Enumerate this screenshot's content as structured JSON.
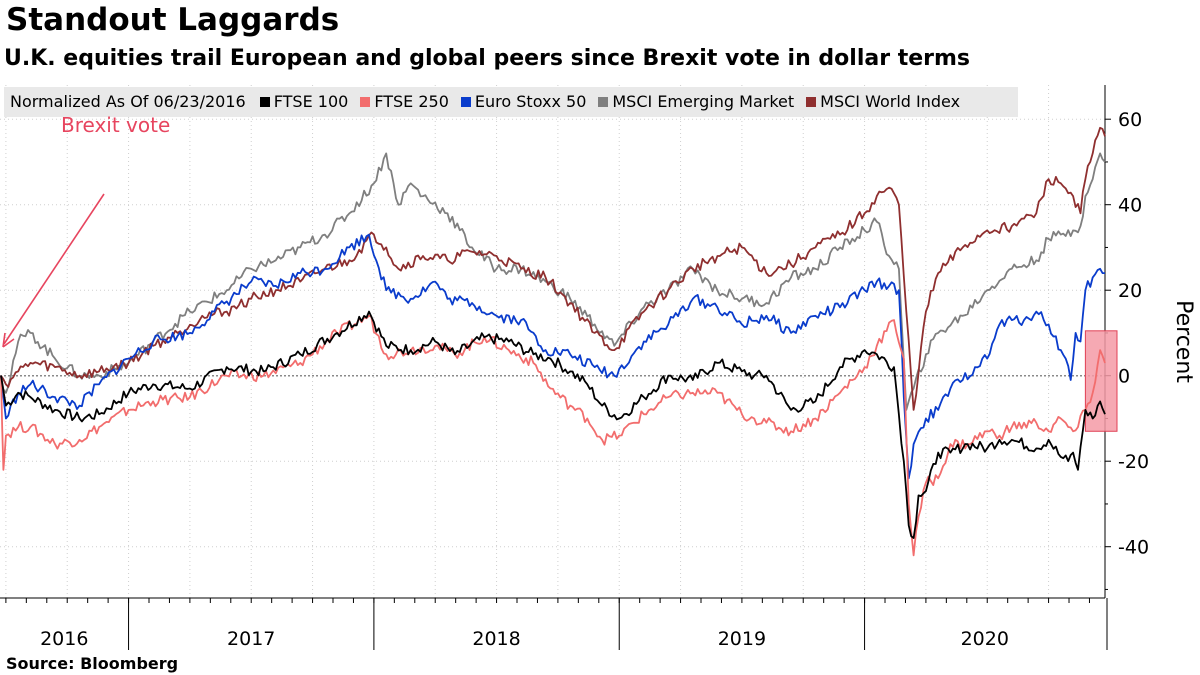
{
  "title": "Standout Laggards",
  "subtitle": "U.K. equities trail European and global peers since Brexit vote in dollar terms",
  "source": "Source: Bloomberg",
  "colors": {
    "ftse100": "#000000",
    "ftse250": "#f26d6d",
    "eurostoxx": "#0a3ccc",
    "msci_em": "#7f7f7f",
    "msci_world": "#8f2f2f",
    "annotation": "#e7455f",
    "highlight_fill": "#f59aa6",
    "highlight_stroke": "#e04055"
  },
  "chart_data": {
    "type": "line",
    "title": "Standout Laggards",
    "subtitle": "U.K. equities trail European and global peers since Brexit vote in dollar terms",
    "legend_header": "Normalized As Of 06/23/2016",
    "ylabel": "Percent",
    "ylim": [
      -52,
      68
    ],
    "yticks": [
      -40,
      -20,
      0,
      20,
      40,
      60
    ],
    "x_range": [
      2016.476,
      2020.98
    ],
    "x_tick_labels": [
      "2016",
      "2017",
      "2018",
      "2019",
      "2020"
    ],
    "x_year_boundaries": [
      2017,
      2018,
      2019,
      2020
    ],
    "reference_line": {
      "y": 0,
      "style": "dotted"
    },
    "annotation": {
      "text": "Brexit vote",
      "x": 2016.48,
      "y": 0
    },
    "highlight": {
      "x": [
        2020.9,
        2020.98
      ],
      "y": [
        -13,
        10.5
      ]
    },
    "series": [
      {
        "name": "FTSE 100",
        "color_key": "ftse100",
        "x": [
          2016.48,
          2016.5,
          2016.55,
          2016.6,
          2016.7,
          2016.8,
          2016.88,
          2017.0,
          2017.1,
          2017.25,
          2017.4,
          2017.55,
          2017.7,
          2017.85,
          2017.98,
          2018.05,
          2018.15,
          2018.25,
          2018.33,
          2018.45,
          2018.55,
          2018.65,
          2018.72,
          2018.8,
          2018.87,
          2018.93,
          2019.0,
          2019.1,
          2019.2,
          2019.3,
          2019.4,
          2019.5,
          2019.55,
          2019.6,
          2019.7,
          2019.8,
          2019.9,
          2020.0,
          2020.05,
          2020.12,
          2020.16,
          2020.18,
          2020.2,
          2020.22,
          2020.25,
          2020.3,
          2020.35,
          2020.42,
          2020.5,
          2020.55,
          2020.6,
          2020.7,
          2020.75,
          2020.8,
          2020.83,
          2020.85,
          2020.87,
          2020.9,
          2020.93,
          2020.96,
          2020.98
        ],
        "values": [
          0,
          -7,
          -4,
          -5,
          -8,
          -10,
          -9,
          -4,
          -2,
          -3,
          2,
          1,
          5,
          10,
          15,
          7,
          6,
          8,
          5,
          9,
          8,
          5,
          4,
          1,
          -2,
          -7,
          -10,
          -5,
          0,
          -1,
          3,
          1,
          0,
          0,
          -8,
          -6,
          2,
          6,
          5,
          2,
          -20,
          -35,
          -38,
          -28,
          -27,
          -18,
          -18,
          -16,
          -17,
          -15,
          -15,
          -17,
          -15,
          -19,
          -20,
          -18,
          -22,
          -8,
          -10,
          -6,
          -9
        ]
      },
      {
        "name": "FTSE 250",
        "color_key": "ftse250",
        "x": [
          2016.48,
          2016.49,
          2016.5,
          2016.55,
          2016.6,
          2016.7,
          2016.8,
          2016.88,
          2017.0,
          2017.1,
          2017.25,
          2017.4,
          2017.55,
          2017.7,
          2017.85,
          2017.98,
          2018.05,
          2018.15,
          2018.25,
          2018.33,
          2018.45,
          2018.55,
          2018.65,
          2018.72,
          2018.8,
          2018.87,
          2018.93,
          2019.0,
          2019.1,
          2019.2,
          2019.3,
          2019.4,
          2019.5,
          2019.55,
          2019.6,
          2019.7,
          2019.8,
          2019.9,
          2020.0,
          2020.05,
          2020.12,
          2020.16,
          2020.18,
          2020.2,
          2020.22,
          2020.25,
          2020.3,
          2020.35,
          2020.42,
          2020.5,
          2020.55,
          2020.6,
          2020.7,
          2020.75,
          2020.8,
          2020.83,
          2020.85,
          2020.87,
          2020.9,
          2020.93,
          2020.96,
          2020.98
        ],
        "values": [
          0,
          -22,
          -14,
          -12,
          -12,
          -16,
          -15,
          -12,
          -8,
          -6,
          -5,
          0,
          0,
          3,
          10,
          14,
          5,
          6,
          7,
          5,
          9,
          6,
          3,
          -3,
          -7,
          -10,
          -15,
          -14,
          -9,
          -5,
          -4,
          -4,
          -9,
          -10,
          -11,
          -13,
          -10,
          -4,
          2,
          7,
          13,
          4,
          -30,
          -42,
          -33,
          -25,
          -24,
          -16,
          -16,
          -13,
          -14,
          -12,
          -11,
          -13,
          -10,
          -12,
          -13,
          -12,
          -8,
          -4,
          6,
          3
        ]
      },
      {
        "name": "Euro Stoxx 50",
        "color_key": "eurostoxx",
        "x": [
          2016.48,
          2016.5,
          2016.55,
          2016.6,
          2016.7,
          2016.8,
          2016.88,
          2017.0,
          2017.1,
          2017.25,
          2017.35,
          2017.5,
          2017.6,
          2017.7,
          2017.8,
          2017.9,
          2017.98,
          2018.05,
          2018.15,
          2018.25,
          2018.3,
          2018.4,
          2018.5,
          2018.6,
          2018.7,
          2018.8,
          2018.9,
          2018.98,
          2019.1,
          2019.2,
          2019.3,
          2019.4,
          2019.5,
          2019.6,
          2019.7,
          2019.8,
          2019.9,
          2020.0,
          2020.05,
          2020.1,
          2020.14,
          2020.16,
          2020.18,
          2020.2,
          2020.25,
          2020.3,
          2020.35,
          2020.4,
          2020.45,
          2020.5,
          2020.55,
          2020.6,
          2020.65,
          2020.7,
          2020.75,
          2020.8,
          2020.82,
          2020.84,
          2020.86,
          2020.88,
          2020.9,
          2020.93,
          2020.96,
          2020.98
        ],
        "values": [
          0,
          -10,
          -4,
          -2,
          -5,
          -7,
          -2,
          4,
          8,
          10,
          15,
          22,
          21,
          24,
          25,
          30,
          33,
          20,
          18,
          22,
          18,
          17,
          14,
          13,
          6,
          5,
          2,
          0,
          8,
          12,
          18,
          16,
          12,
          14,
          10,
          14,
          16,
          20,
          22,
          21,
          20,
          -5,
          -24,
          -16,
          -10,
          -8,
          -3,
          -1,
          2,
          4,
          12,
          13,
          13,
          15,
          12,
          6,
          4,
          -1,
          10,
          8,
          20,
          23,
          25,
          24
        ]
      },
      {
        "name": "MSCI Emerging Market",
        "color_key": "msci_em",
        "x": [
          2016.48,
          2016.5,
          2016.55,
          2016.6,
          2016.7,
          2016.8,
          2016.88,
          2017.0,
          2017.1,
          2017.25,
          2017.4,
          2017.5,
          2017.6,
          2017.7,
          2017.8,
          2017.9,
          2018.0,
          2018.05,
          2018.1,
          2018.15,
          2018.2,
          2018.3,
          2018.4,
          2018.5,
          2018.6,
          2018.7,
          2018.8,
          2018.9,
          2018.98,
          2019.1,
          2019.2,
          2019.3,
          2019.4,
          2019.5,
          2019.6,
          2019.7,
          2019.8,
          2019.9,
          2020.0,
          2020.05,
          2020.1,
          2020.14,
          2020.17,
          2020.2,
          2020.25,
          2020.3,
          2020.4,
          2020.5,
          2020.6,
          2020.7,
          2020.75,
          2020.8,
          2020.85,
          2020.88,
          2020.9,
          2020.93,
          2020.96,
          2020.98
        ],
        "values": [
          0,
          -4,
          8,
          10,
          4,
          0,
          0,
          3,
          8,
          15,
          20,
          25,
          27,
          30,
          33,
          38,
          45,
          52,
          40,
          45,
          42,
          38,
          30,
          25,
          25,
          22,
          18,
          12,
          7,
          16,
          20,
          25,
          20,
          18,
          17,
          23,
          25,
          30,
          34,
          36,
          28,
          25,
          -8,
          -3,
          5,
          10,
          14,
          20,
          25,
          27,
          32,
          33,
          34,
          35,
          42,
          46,
          52,
          50
        ]
      },
      {
        "name": "MSCI World Index",
        "color_key": "msci_world",
        "x": [
          2016.48,
          2016.5,
          2016.55,
          2016.6,
          2016.7,
          2016.8,
          2016.88,
          2017.0,
          2017.1,
          2017.2,
          2017.3,
          2017.4,
          2017.5,
          2017.6,
          2017.7,
          2017.8,
          2017.9,
          2018.0,
          2018.05,
          2018.1,
          2018.2,
          2018.3,
          2018.4,
          2018.5,
          2018.6,
          2018.7,
          2018.8,
          2018.9,
          2018.98,
          2019.1,
          2019.2,
          2019.3,
          2019.4,
          2019.5,
          2019.6,
          2019.7,
          2019.8,
          2019.9,
          2020.0,
          2020.05,
          2020.1,
          2020.14,
          2020.17,
          2020.2,
          2020.25,
          2020.3,
          2020.4,
          2020.5,
          2020.6,
          2020.7,
          2020.75,
          2020.8,
          2020.85,
          2020.88,
          2020.9,
          2020.93,
          2020.96,
          2020.98
        ],
        "values": [
          0,
          -2,
          1,
          3,
          2,
          0,
          1,
          3,
          7,
          10,
          14,
          15,
          18,
          20,
          22,
          25,
          27,
          33,
          30,
          25,
          28,
          27,
          29,
          28,
          25,
          23,
          17,
          10,
          6,
          15,
          20,
          25,
          28,
          30,
          24,
          26,
          30,
          33,
          38,
          42,
          44,
          40,
          15,
          -8,
          15,
          24,
          30,
          34,
          35,
          38,
          46,
          45,
          42,
          38,
          46,
          52,
          58,
          56
        ]
      }
    ]
  }
}
